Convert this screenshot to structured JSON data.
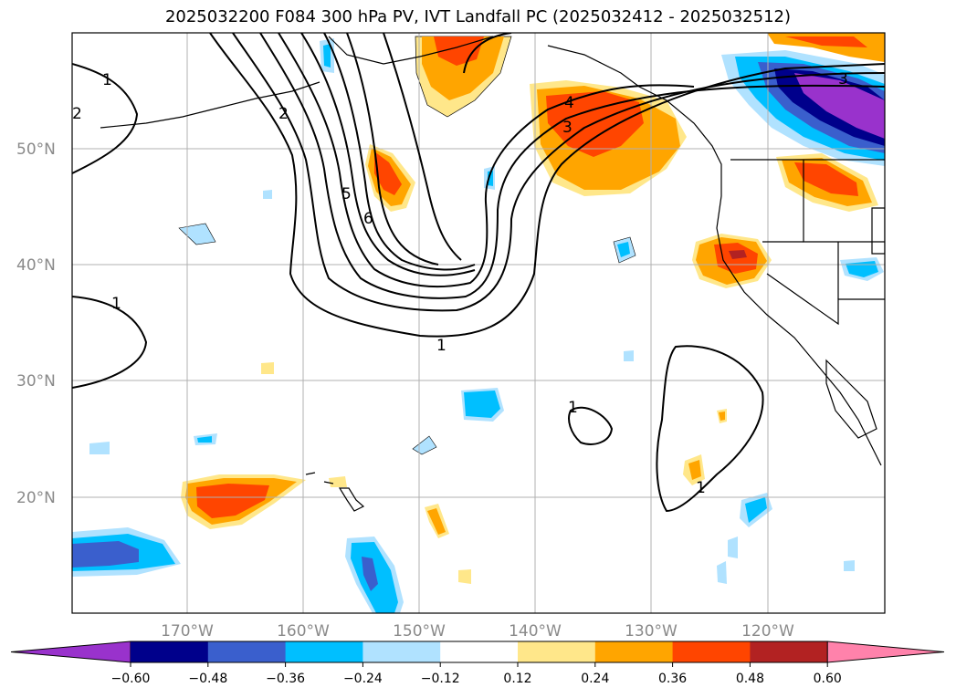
{
  "title": "2025032200 F084 300 hPa PV, IVT Landfall PC (2025032412 - 2025032512)",
  "lon_labels": [
    "170°W",
    "160°W",
    "150°W",
    "140°W",
    "130°W",
    "120°W"
  ],
  "lat_labels": [
    "50°N",
    "40°N",
    "30°N",
    "20°N"
  ],
  "contour_labels": [
    "1",
    "2",
    "3",
    "4",
    "5",
    "6"
  ],
  "colorbar": {
    "tick_labels": [
      "−0.60",
      "−0.48",
      "−0.36",
      "−0.24",
      "−0.12",
      "0.12",
      "0.24",
      "0.36",
      "0.48",
      "0.60"
    ],
    "colors": [
      "#9932CC",
      "#00008B",
      "#3A5FCD",
      "#00BFFF",
      "#B0E2FF",
      "#FFFFFF",
      "#FFE78A",
      "#FFA500",
      "#FF4500",
      "#B22222",
      "#FF82AB"
    ]
  }
}
